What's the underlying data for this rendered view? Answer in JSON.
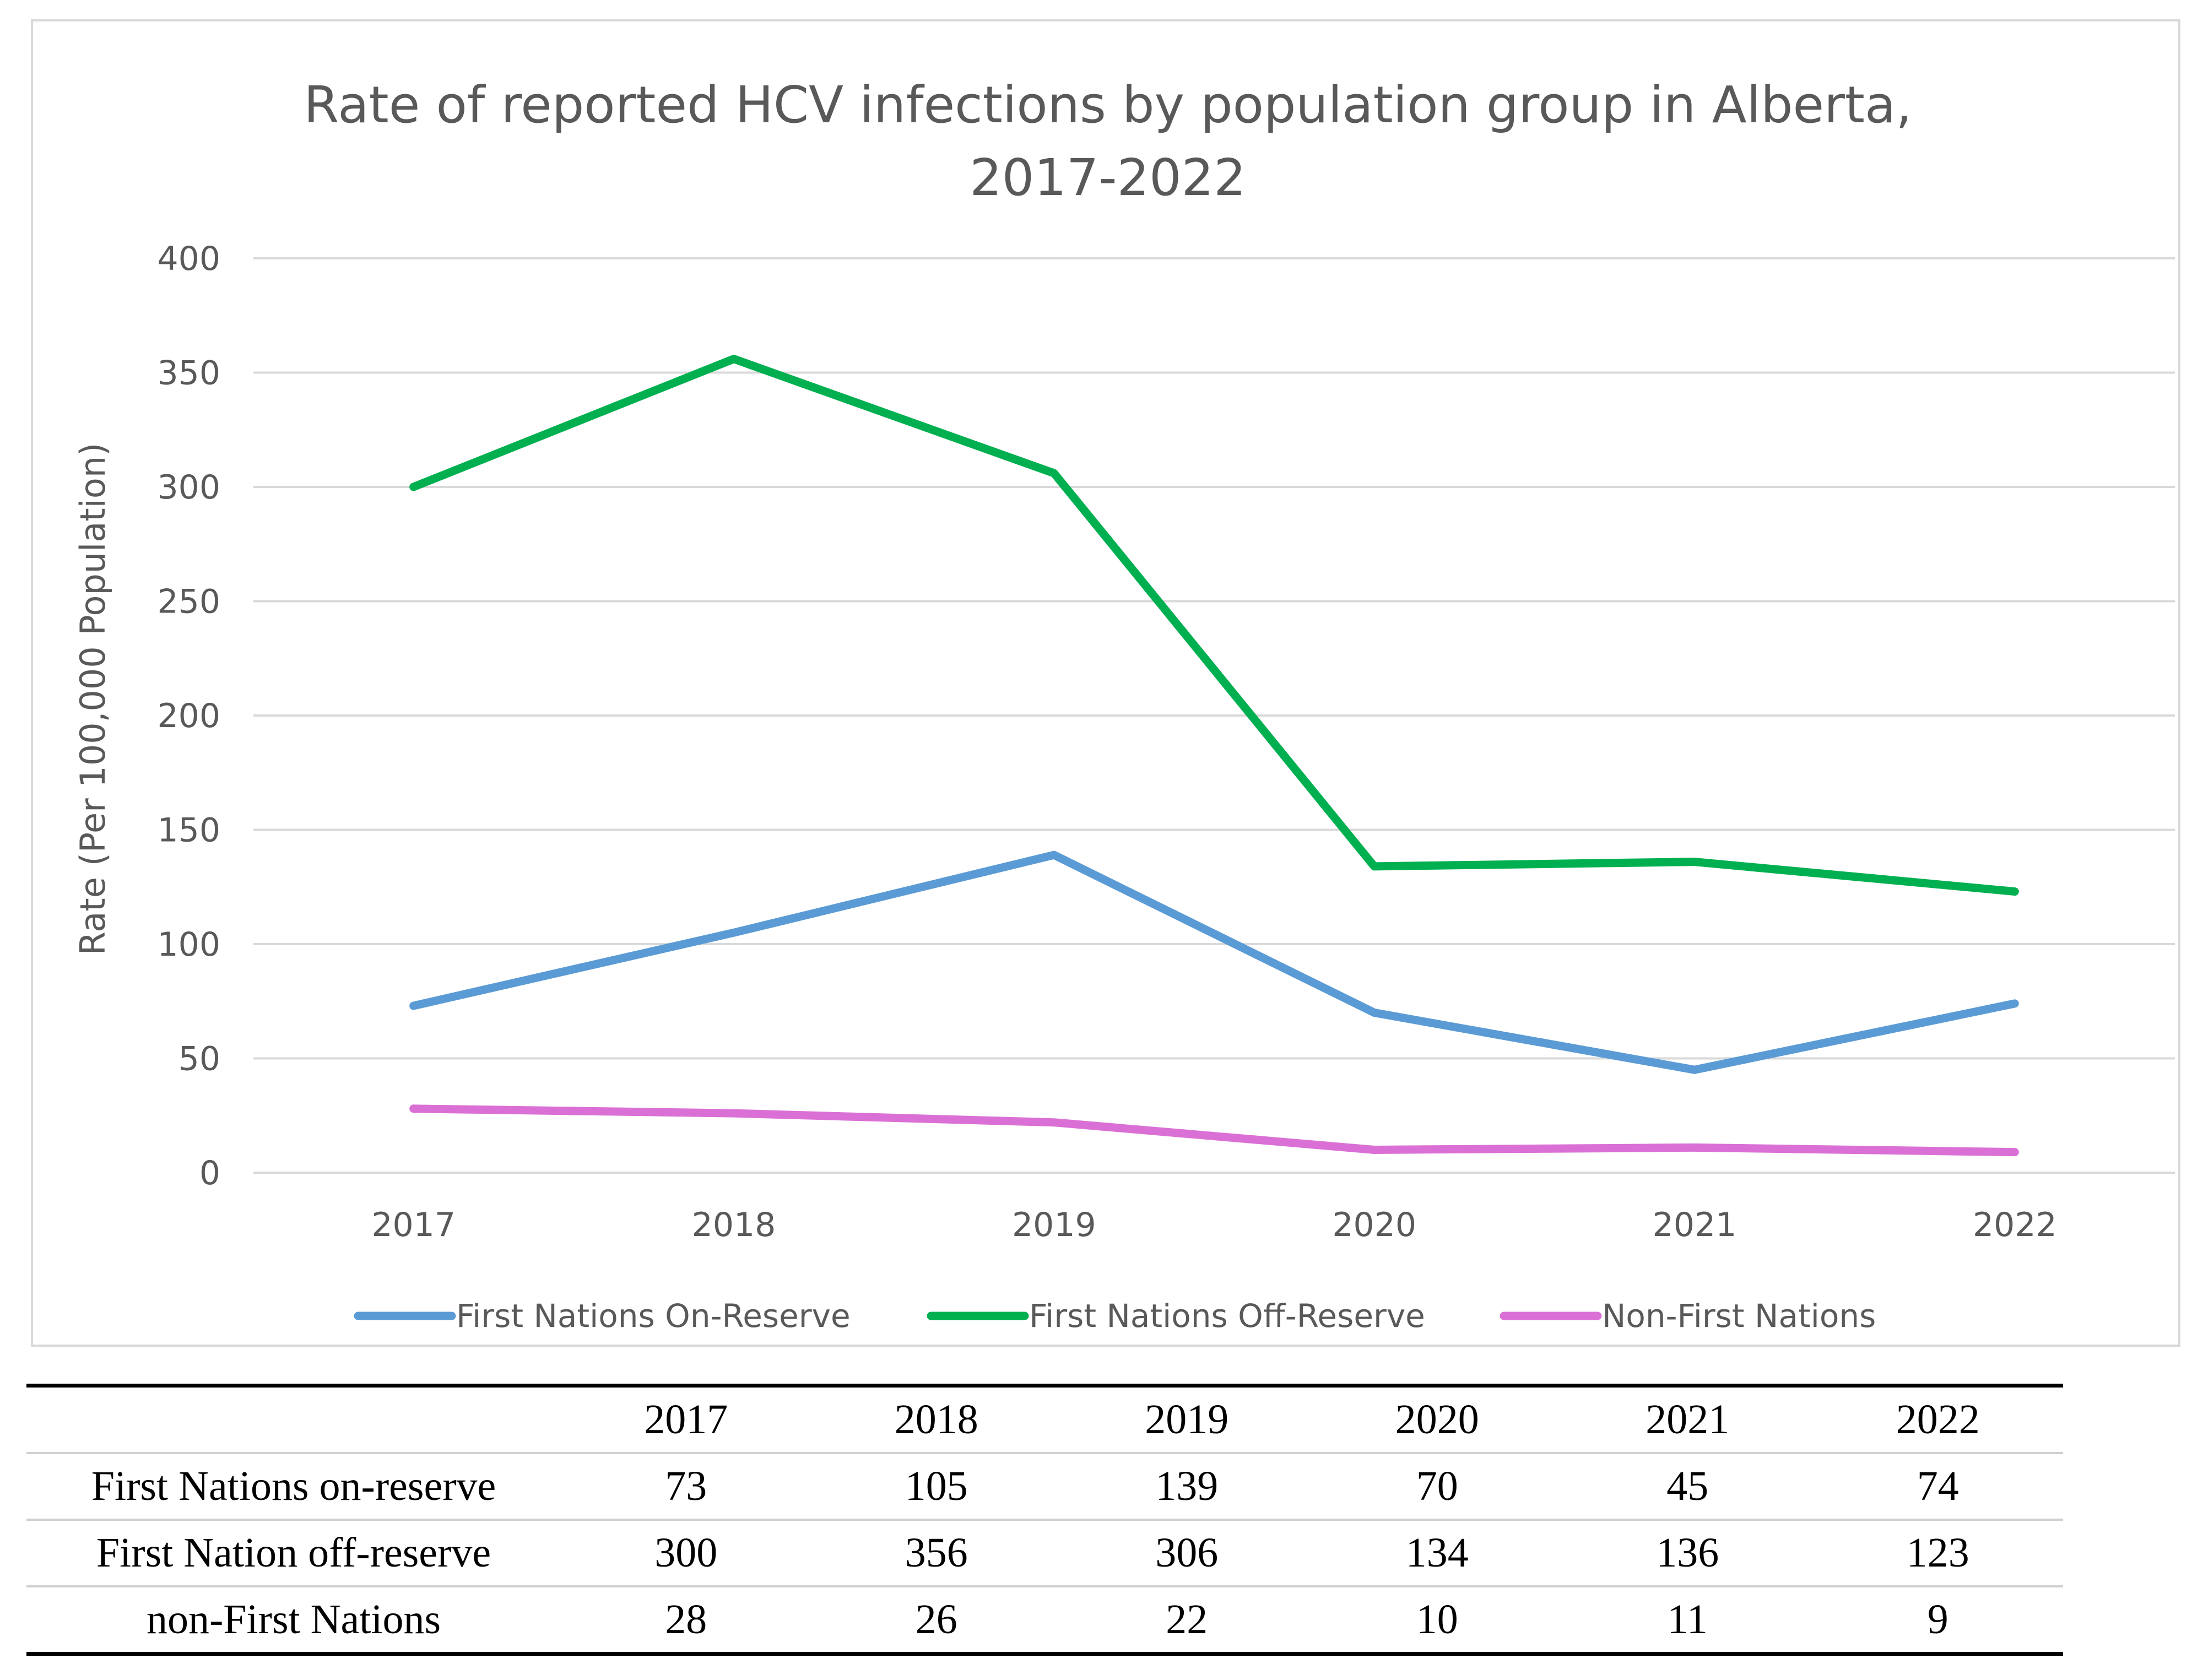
{
  "chart_data": {
    "type": "line",
    "title_lines": [
      "Rate of reported HCV infections by population group in Alberta,",
      "2017-2022"
    ],
    "title": "Rate of reported HCV infections by population group in Alberta, 2017-2022",
    "xlabel": "",
    "ylabel": "Rate (Per 100,000 Population)",
    "categories": [
      "2017",
      "2018",
      "2019",
      "2020",
      "2021",
      "2022"
    ],
    "ylim": [
      0,
      400
    ],
    "yticks": [
      0,
      50,
      100,
      150,
      200,
      250,
      300,
      350,
      400
    ],
    "grid": true,
    "legend_position": "bottom",
    "series": [
      {
        "name": "First Nations On-Reserve",
        "color": "#5b9bd5",
        "values": [
          73,
          105,
          139,
          70,
          45,
          74
        ]
      },
      {
        "name": "First Nations Off-Reserve",
        "color": "#00b050",
        "values": [
          300,
          356,
          306,
          134,
          136,
          123
        ]
      },
      {
        "name": "Non-First Nations",
        "color": "#da70d6",
        "values": [
          28,
          26,
          22,
          10,
          11,
          9
        ]
      }
    ]
  },
  "table": {
    "header": [
      "",
      "2017",
      "2018",
      "2019",
      "2020",
      "2021",
      "2022"
    ],
    "rows": [
      {
        "label": "First Nations on-reserve",
        "values": [
          "73",
          "105",
          "139",
          "70",
          "45",
          "74"
        ]
      },
      {
        "label": "First Nation off-reserve",
        "values": [
          "300",
          "356",
          "306",
          "134",
          "136",
          "123"
        ]
      },
      {
        "label": "non-First Nations",
        "values": [
          "28",
          "26",
          "22",
          "10",
          "11",
          "9"
        ]
      }
    ]
  }
}
